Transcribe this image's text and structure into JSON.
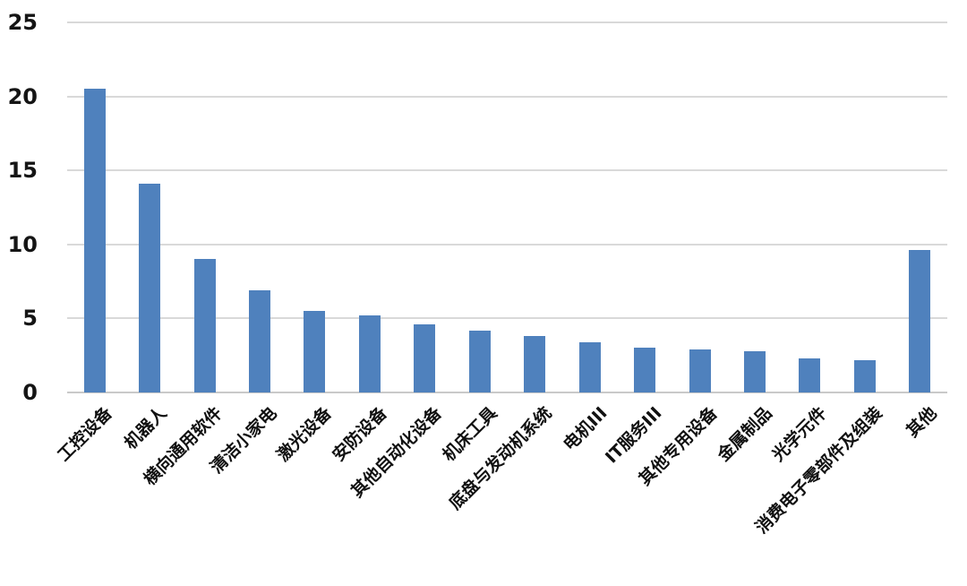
{
  "chart_data": {
    "type": "bar",
    "title": "",
    "xlabel": "",
    "ylabel": "",
    "categories": [
      "工控设备",
      "机器人",
      "横向通用软件",
      "清洁小家电",
      "激光设备",
      "安防设备",
      "其他自动化设备",
      "机床工具",
      "底盘与发动机系统",
      "电机III",
      "IT服务III",
      "其他专用设备",
      "金属制品",
      "光学元件",
      "消费电子零部件及组装",
      "其他"
    ],
    "values": [
      20.5,
      14.1,
      9.0,
      6.9,
      5.5,
      5.2,
      4.6,
      4.2,
      3.8,
      3.4,
      3.0,
      2.9,
      2.8,
      2.3,
      2.2,
      9.6
    ],
    "ylim": [
      0,
      25
    ],
    "yticks": [
      0,
      5,
      10,
      15,
      20,
      25
    ],
    "grid": true,
    "legend_position": "none",
    "bar_color": "#4f81bd",
    "gridline_color": "#d9d9d9",
    "axis_line_color": "#c9c9c9",
    "background_color": "#ffffff",
    "tick_label_color": "#151515"
  }
}
